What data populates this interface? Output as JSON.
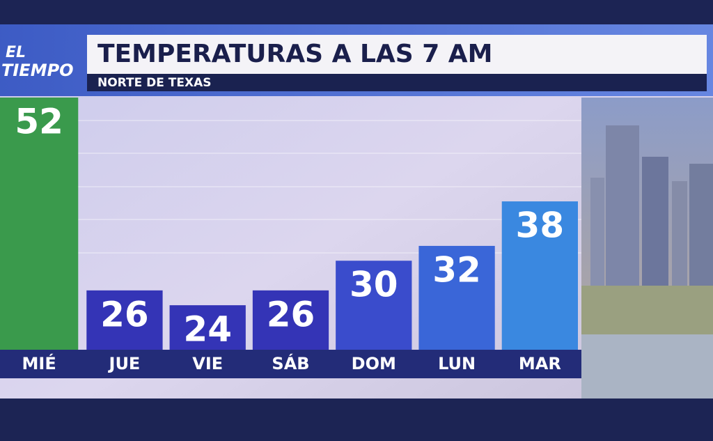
{
  "chart_data": {
    "type": "bar",
    "logo": [
      "EL",
      "TIEMPO"
    ],
    "title": "TEMPERATURAS A LAS 7 AM",
    "subtitle": "NORTE DE TEXAS",
    "categories": [
      "MIÉ",
      "JUE",
      "VIE",
      "SÁB",
      "DOM",
      "LUN",
      "MAR"
    ],
    "values": [
      52,
      26,
      24,
      26,
      30,
      32,
      38
    ],
    "colors": [
      "#3a9a4c",
      "#3434b6",
      "#3434b6",
      "#3434b6",
      "#3a4ccc",
      "#3a66d8",
      "#3a88e0"
    ],
    "ylim": [
      18,
      52
    ]
  }
}
